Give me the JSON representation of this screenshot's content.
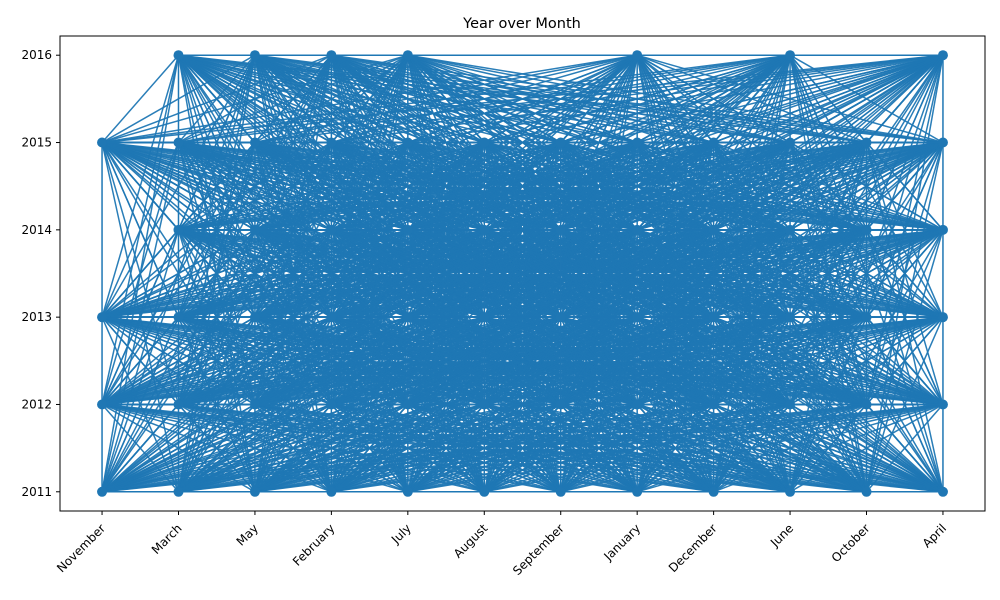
{
  "chart_data": {
    "type": "line",
    "title": "Year over Month",
    "xlabel": "",
    "ylabel": "",
    "categories": [
      "November",
      "March",
      "May",
      "February",
      "July",
      "August",
      "September",
      "January",
      "December",
      "June",
      "October",
      "April"
    ],
    "y_ticks": [
      2011,
      2012,
      2013,
      2014,
      2015,
      2016
    ],
    "ylim": [
      2010.78,
      2016.22
    ],
    "grid": false,
    "legend": "none",
    "colors": {
      "series": "#1f77b4"
    },
    "series": [
      {
        "values_by_category": {
          "November": [
            2011,
            2012,
            2013,
            2015
          ],
          "March": [
            2011,
            2012,
            2013,
            2014,
            2015,
            2016
          ],
          "May": [
            2011,
            2012,
            2013,
            2014,
            2015,
            2016
          ],
          "February": [
            2011,
            2012,
            2013,
            2014,
            2015,
            2016
          ],
          "July": [
            2011,
            2012,
            2013,
            2014,
            2015,
            2016
          ],
          "August": [
            2011,
            2012,
            2013,
            2014,
            2015
          ],
          "September": [
            2011,
            2012,
            2013,
            2014,
            2015
          ],
          "January": [
            2011,
            2012,
            2013,
            2014,
            2015,
            2016
          ],
          "December": [
            2011,
            2012,
            2013,
            2014,
            2015
          ],
          "June": [
            2011,
            2012,
            2013,
            2014,
            2015,
            2016
          ],
          "October": [
            2011,
            2012,
            2013,
            2014,
            2015
          ],
          "April": [
            2011,
            2012,
            2013,
            2014,
            2015,
            2016
          ]
        }
      }
    ]
  }
}
